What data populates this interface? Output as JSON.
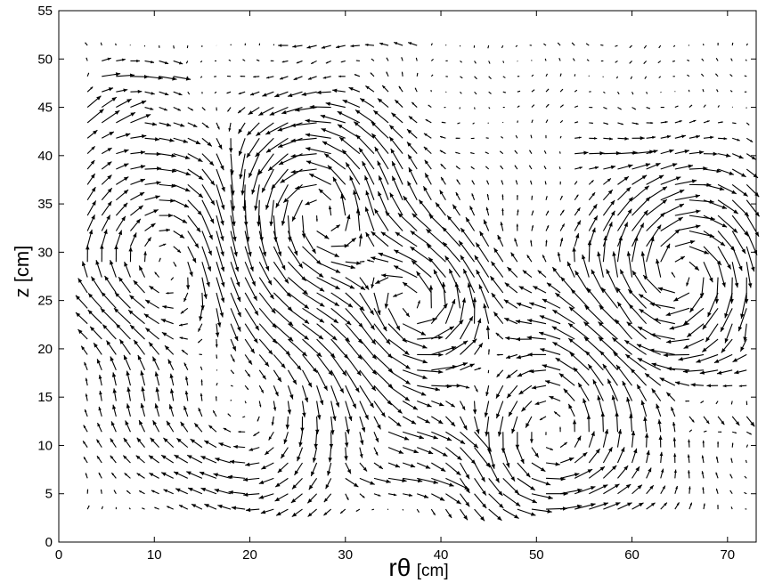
{
  "chart_data": {
    "type": "quiver",
    "xlabel_main": "rθ",
    "xlabel_unit": "[cm]",
    "ylabel": "z [cm]",
    "xlim": [
      0,
      73
    ],
    "ylim": [
      0,
      55
    ],
    "xticks": [
      0,
      10,
      20,
      30,
      40,
      50,
      60,
      70
    ],
    "yticks": [
      0,
      5,
      10,
      15,
      20,
      25,
      30,
      35,
      40,
      45,
      50,
      55
    ],
    "grid": false,
    "legend": "none",
    "field_grid": {
      "x_start": 3.0,
      "x_step": 1.5,
      "x_count": 47,
      "y_start": 3.4,
      "y_step": 1.6,
      "y_count": 31
    },
    "vortices": [
      {
        "x": 27,
        "y": 34,
        "strength": 7,
        "radius": 6
      },
      {
        "x": 37,
        "y": 24,
        "strength": 7,
        "radius": 5
      },
      {
        "x": 65,
        "y": 28,
        "strength": -6,
        "radius": 6
      },
      {
        "x": 11,
        "y": 30,
        "strength": -4,
        "radius": 7
      },
      {
        "x": 52,
        "y": 12,
        "strength": 4,
        "radius": 7
      },
      {
        "x": 19,
        "y": 14,
        "strength": -3,
        "radius": 7
      }
    ],
    "jets": [
      {
        "x0": 4,
        "x1": 12,
        "y": 48.5,
        "u": 2.2,
        "v": 0
      },
      {
        "x0": 3,
        "x1": 8,
        "y": 44,
        "u": 1.2,
        "v": 1.2
      },
      {
        "x0": 34,
        "x1": 44,
        "y": 11,
        "u": 2.0,
        "v": 0
      },
      {
        "x0": 29,
        "x1": 41,
        "y": 6.5,
        "u": 2.0,
        "v": 0
      },
      {
        "x0": 60,
        "x1": 72,
        "y": 22,
        "u": 1.8,
        "v": 0
      },
      {
        "x0": 53,
        "x1": 60,
        "y": 40,
        "u": 1.6,
        "v": 0
      },
      {
        "x0": 24,
        "x1": 38,
        "y": 52,
        "u": -1.4,
        "v": 0
      },
      {
        "x0": 66,
        "x1": 72,
        "y": 13,
        "u": 1.0,
        "v": -1.6
      }
    ],
    "arrow_scale": 0.85
  }
}
